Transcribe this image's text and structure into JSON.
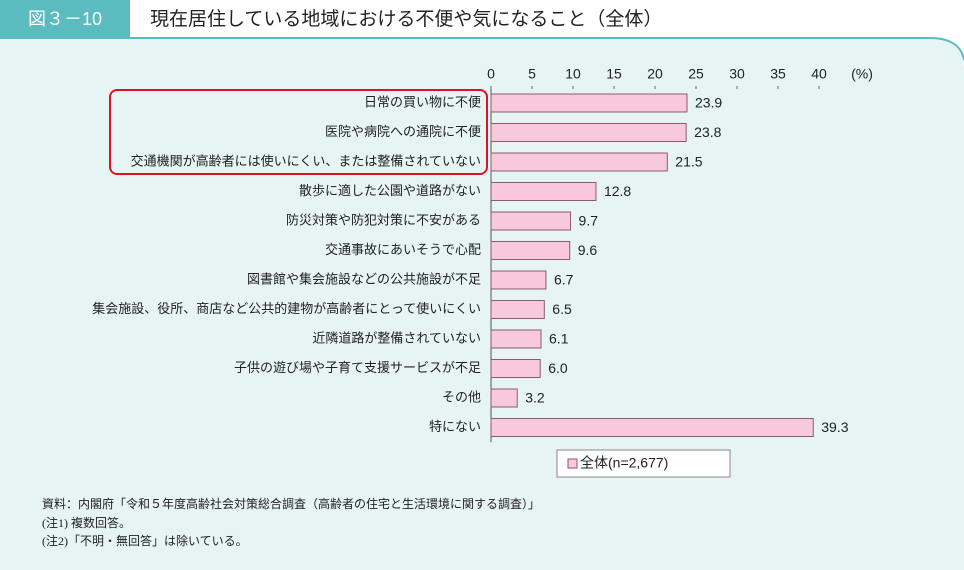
{
  "figure_label": "図３－10",
  "title": "現在居住している地域における不便や気になること（全体）",
  "chart_data": {
    "type": "hbar",
    "categories": [
      "日常の買い物に不便",
      "医院や病院への通院に不便",
      "交通機関が高齢者には使いにくい、または整備されていない",
      "散歩に適した公園や道路がない",
      "防災対策や防犯対策に不安がある",
      "交通事故にあいそうで心配",
      "図書館や集会施設などの公共施設が不足",
      "集会施設、役所、商店など公共的建物が高齢者にとって使いにくい",
      "近隣道路が整備されていない",
      "子供の遊び場や子育て支援サービスが不足",
      "その他",
      "特にない"
    ],
    "series": [
      {
        "name": "全体(n=2,677)",
        "color": "#f8c8dc",
        "values": [
          23.9,
          23.8,
          21.5,
          12.8,
          9.7,
          9.6,
          6.7,
          6.5,
          6.1,
          6.0,
          3.2,
          39.3
        ],
        "value_labels": [
          "23.9",
          "23.8",
          "21.5",
          "12.8",
          "9.7",
          "9.6",
          "6.7",
          "6.5",
          "6.1",
          "6.0",
          "3.2",
          "39.3"
        ]
      }
    ],
    "xlim": [
      0,
      40
    ],
    "xticks": [
      0,
      5,
      10,
      15,
      20,
      25,
      30,
      35,
      40
    ],
    "x_unit": "(%)",
    "legend": "bottom"
  },
  "notes": [
    "資料：内閣府「令和５年度高齢社会対策総合調査（高齢者の住宅と生活環境に関する調査）」",
    "(注1) 複数回答。",
    "(注2)「不明・無回答」は除いている。"
  ]
}
